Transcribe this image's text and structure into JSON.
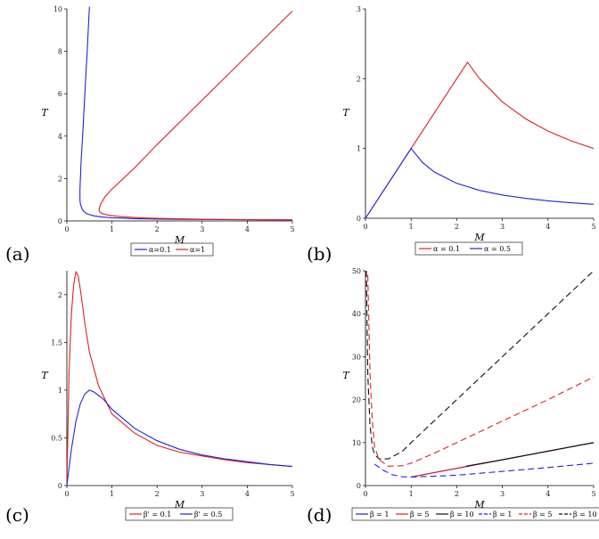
{
  "chart_data": [
    {
      "panel": "(a)",
      "type": "line",
      "xlabel": "M",
      "ylabel": "T",
      "xlim": [
        0,
        5
      ],
      "ylim": [
        0,
        10
      ],
      "xticks": [
        "0",
        "1",
        "2",
        "3",
        "4",
        "5"
      ],
      "yticks": [
        "0",
        "2",
        "4",
        "6",
        "8",
        "10"
      ],
      "series": [
        {
          "name": "α=0.1",
          "color": "#2222dd",
          "dash": "solid",
          "x": [
            0.5,
            0.45,
            0.4,
            0.35,
            0.32,
            0.3,
            0.29,
            0.29,
            0.3,
            0.33,
            0.37,
            0.45,
            0.6,
            0.8,
            1,
            1.5,
            2,
            3,
            4,
            5
          ],
          "y": [
            10.1,
            8.0,
            6.0,
            4.0,
            3.0,
            2.0,
            1.5,
            1.0,
            0.8,
            0.6,
            0.45,
            0.33,
            0.24,
            0.18,
            0.15,
            0.11,
            0.09,
            0.07,
            0.06,
            0.05
          ]
        },
        {
          "name": "α=1",
          "color": "#dd2222",
          "dash": "solid",
          "x": [
            5.0,
            4.0,
            3.0,
            2.0,
            1.5,
            1.2,
            1.0,
            0.85,
            0.75,
            0.72,
            0.72,
            0.78,
            0.9,
            1.2,
            1.6,
            2,
            3,
            4,
            5
          ],
          "y": [
            9.9,
            7.8,
            5.7,
            3.6,
            2.5,
            1.9,
            1.5,
            1.15,
            0.8,
            0.6,
            0.45,
            0.35,
            0.28,
            0.2,
            0.15,
            0.12,
            0.08,
            0.06,
            0.05
          ]
        }
      ],
      "legend": "below"
    },
    {
      "panel": "(b)",
      "type": "line",
      "xlabel": "M",
      "ylabel": "T",
      "xlim": [
        0,
        5
      ],
      "ylim": [
        0,
        3
      ],
      "xticks": [
        "0",
        "1",
        "2",
        "3",
        "4",
        "5"
      ],
      "yticks": [
        "0",
        "1",
        "2",
        "3"
      ],
      "series": [
        {
          "name": "α = 0.1",
          "color": "#dd2222",
          "dash": "solid",
          "x": [
            0,
            1,
            2.236,
            2.5,
            3,
            3.5,
            4,
            4.5,
            5
          ],
          "y": [
            0,
            1,
            2.236,
            2.0,
            1.667,
            1.429,
            1.25,
            1.111,
            1.0
          ]
        },
        {
          "name": "α = 0.5",
          "color": "#2222dd",
          "dash": "solid",
          "x": [
            0,
            1,
            1.25,
            1.5,
            2,
            2.5,
            3,
            3.5,
            4,
            4.5,
            5
          ],
          "y": [
            0,
            1,
            0.8,
            0.667,
            0.5,
            0.4,
            0.333,
            0.286,
            0.25,
            0.222,
            0.2
          ]
        }
      ],
      "legend": "below"
    },
    {
      "panel": "(c)",
      "type": "line",
      "xlabel": "M",
      "ylabel": "T",
      "xlim": [
        0,
        5
      ],
      "ylim": [
        0,
        2.25
      ],
      "xticks": [
        "0",
        "1",
        "2",
        "3",
        "4",
        "5"
      ],
      "yticks": [
        "0",
        "0.5",
        "1",
        "1.5",
        "2"
      ],
      "series": [
        {
          "name": "β' = 0.1",
          "color": "#dd2222",
          "dash": "solid",
          "x": [
            0,
            0.05,
            0.1,
            0.15,
            0.2,
            0.25,
            0.3,
            0.4,
            0.5,
            0.7,
            1,
            1.5,
            2,
            2.5,
            3,
            3.5,
            4,
            4.5,
            5
          ],
          "y": [
            0,
            1.2,
            1.8,
            2.1,
            2.24,
            2.2,
            2.05,
            1.7,
            1.4,
            1.05,
            0.75,
            0.55,
            0.42,
            0.35,
            0.31,
            0.27,
            0.24,
            0.22,
            0.2
          ]
        },
        {
          "name": "β' = 0.5",
          "color": "#2222dd",
          "dash": "solid",
          "x": [
            0,
            0.1,
            0.2,
            0.3,
            0.4,
            0.5,
            0.6,
            0.8,
            1,
            1.5,
            2,
            2.5,
            3,
            3.5,
            4,
            4.5,
            5
          ],
          "y": [
            0,
            0.38,
            0.67,
            0.86,
            0.96,
            1.0,
            0.98,
            0.91,
            0.8,
            0.6,
            0.47,
            0.38,
            0.32,
            0.28,
            0.25,
            0.22,
            0.2
          ]
        }
      ],
      "legend": "below"
    },
    {
      "panel": "(d)",
      "type": "line",
      "xlabel": "M",
      "ylabel": "T",
      "xlim": [
        0,
        5
      ],
      "ylim": [
        0,
        50
      ],
      "xticks": [
        "0",
        "1",
        "2",
        "3",
        "4",
        "5"
      ],
      "yticks": [
        "0",
        "10",
        "20",
        "30",
        "40",
        "50"
      ],
      "series": [
        {
          "name": "β = 1",
          "color": "#2222dd",
          "dash": "solid",
          "x": [
            1,
            2,
            3,
            4,
            5
          ],
          "y": [
            2,
            4,
            6,
            8,
            10
          ]
        },
        {
          "name": "β = 5",
          "color": "#dd2222",
          "dash": "solid",
          "x": [
            1,
            2,
            3,
            4,
            5
          ],
          "y": [
            2,
            4,
            6,
            8,
            10
          ]
        },
        {
          "name": "β = 10",
          "color": "#111111",
          "dash": "solid",
          "x": [
            2.2,
            3,
            4,
            5
          ],
          "y": [
            4.5,
            6,
            8,
            10
          ]
        },
        {
          "name": "β = 1",
          "color": "#2222dd",
          "dash": "dashed",
          "x": [
            0.2,
            0.4,
            0.6,
            0.8,
            1,
            1.5,
            2,
            3,
            4,
            5
          ],
          "y": [
            5,
            3.5,
            2.5,
            2.05,
            2,
            2.15,
            2.4,
            3.3,
            4.2,
            5.2
          ]
        },
        {
          "name": "β = 5",
          "color": "#dd2222",
          "dash": "dashed",
          "x": [
            0.05,
            0.1,
            0.15,
            0.2,
            0.3,
            0.5,
            0.8,
            1,
            1.5,
            2,
            3,
            4,
            5
          ],
          "y": [
            49,
            26,
            15,
            9,
            6,
            4.5,
            4.6,
            5.2,
            7.5,
            10,
            15,
            20,
            25.3
          ]
        },
        {
          "name": "β = 10",
          "color": "#111111",
          "dash": "dashed",
          "x": [
            0.02,
            0.05,
            0.1,
            0.15,
            0.2,
            0.3,
            0.5,
            0.8,
            1,
            1.5,
            2,
            3,
            4,
            5
          ],
          "y": [
            50,
            26,
            14,
            9,
            7.2,
            6.2,
            6.2,
            7.9,
            10,
            15,
            20,
            30,
            40,
            50
          ]
        }
      ],
      "legend": "below"
    }
  ]
}
